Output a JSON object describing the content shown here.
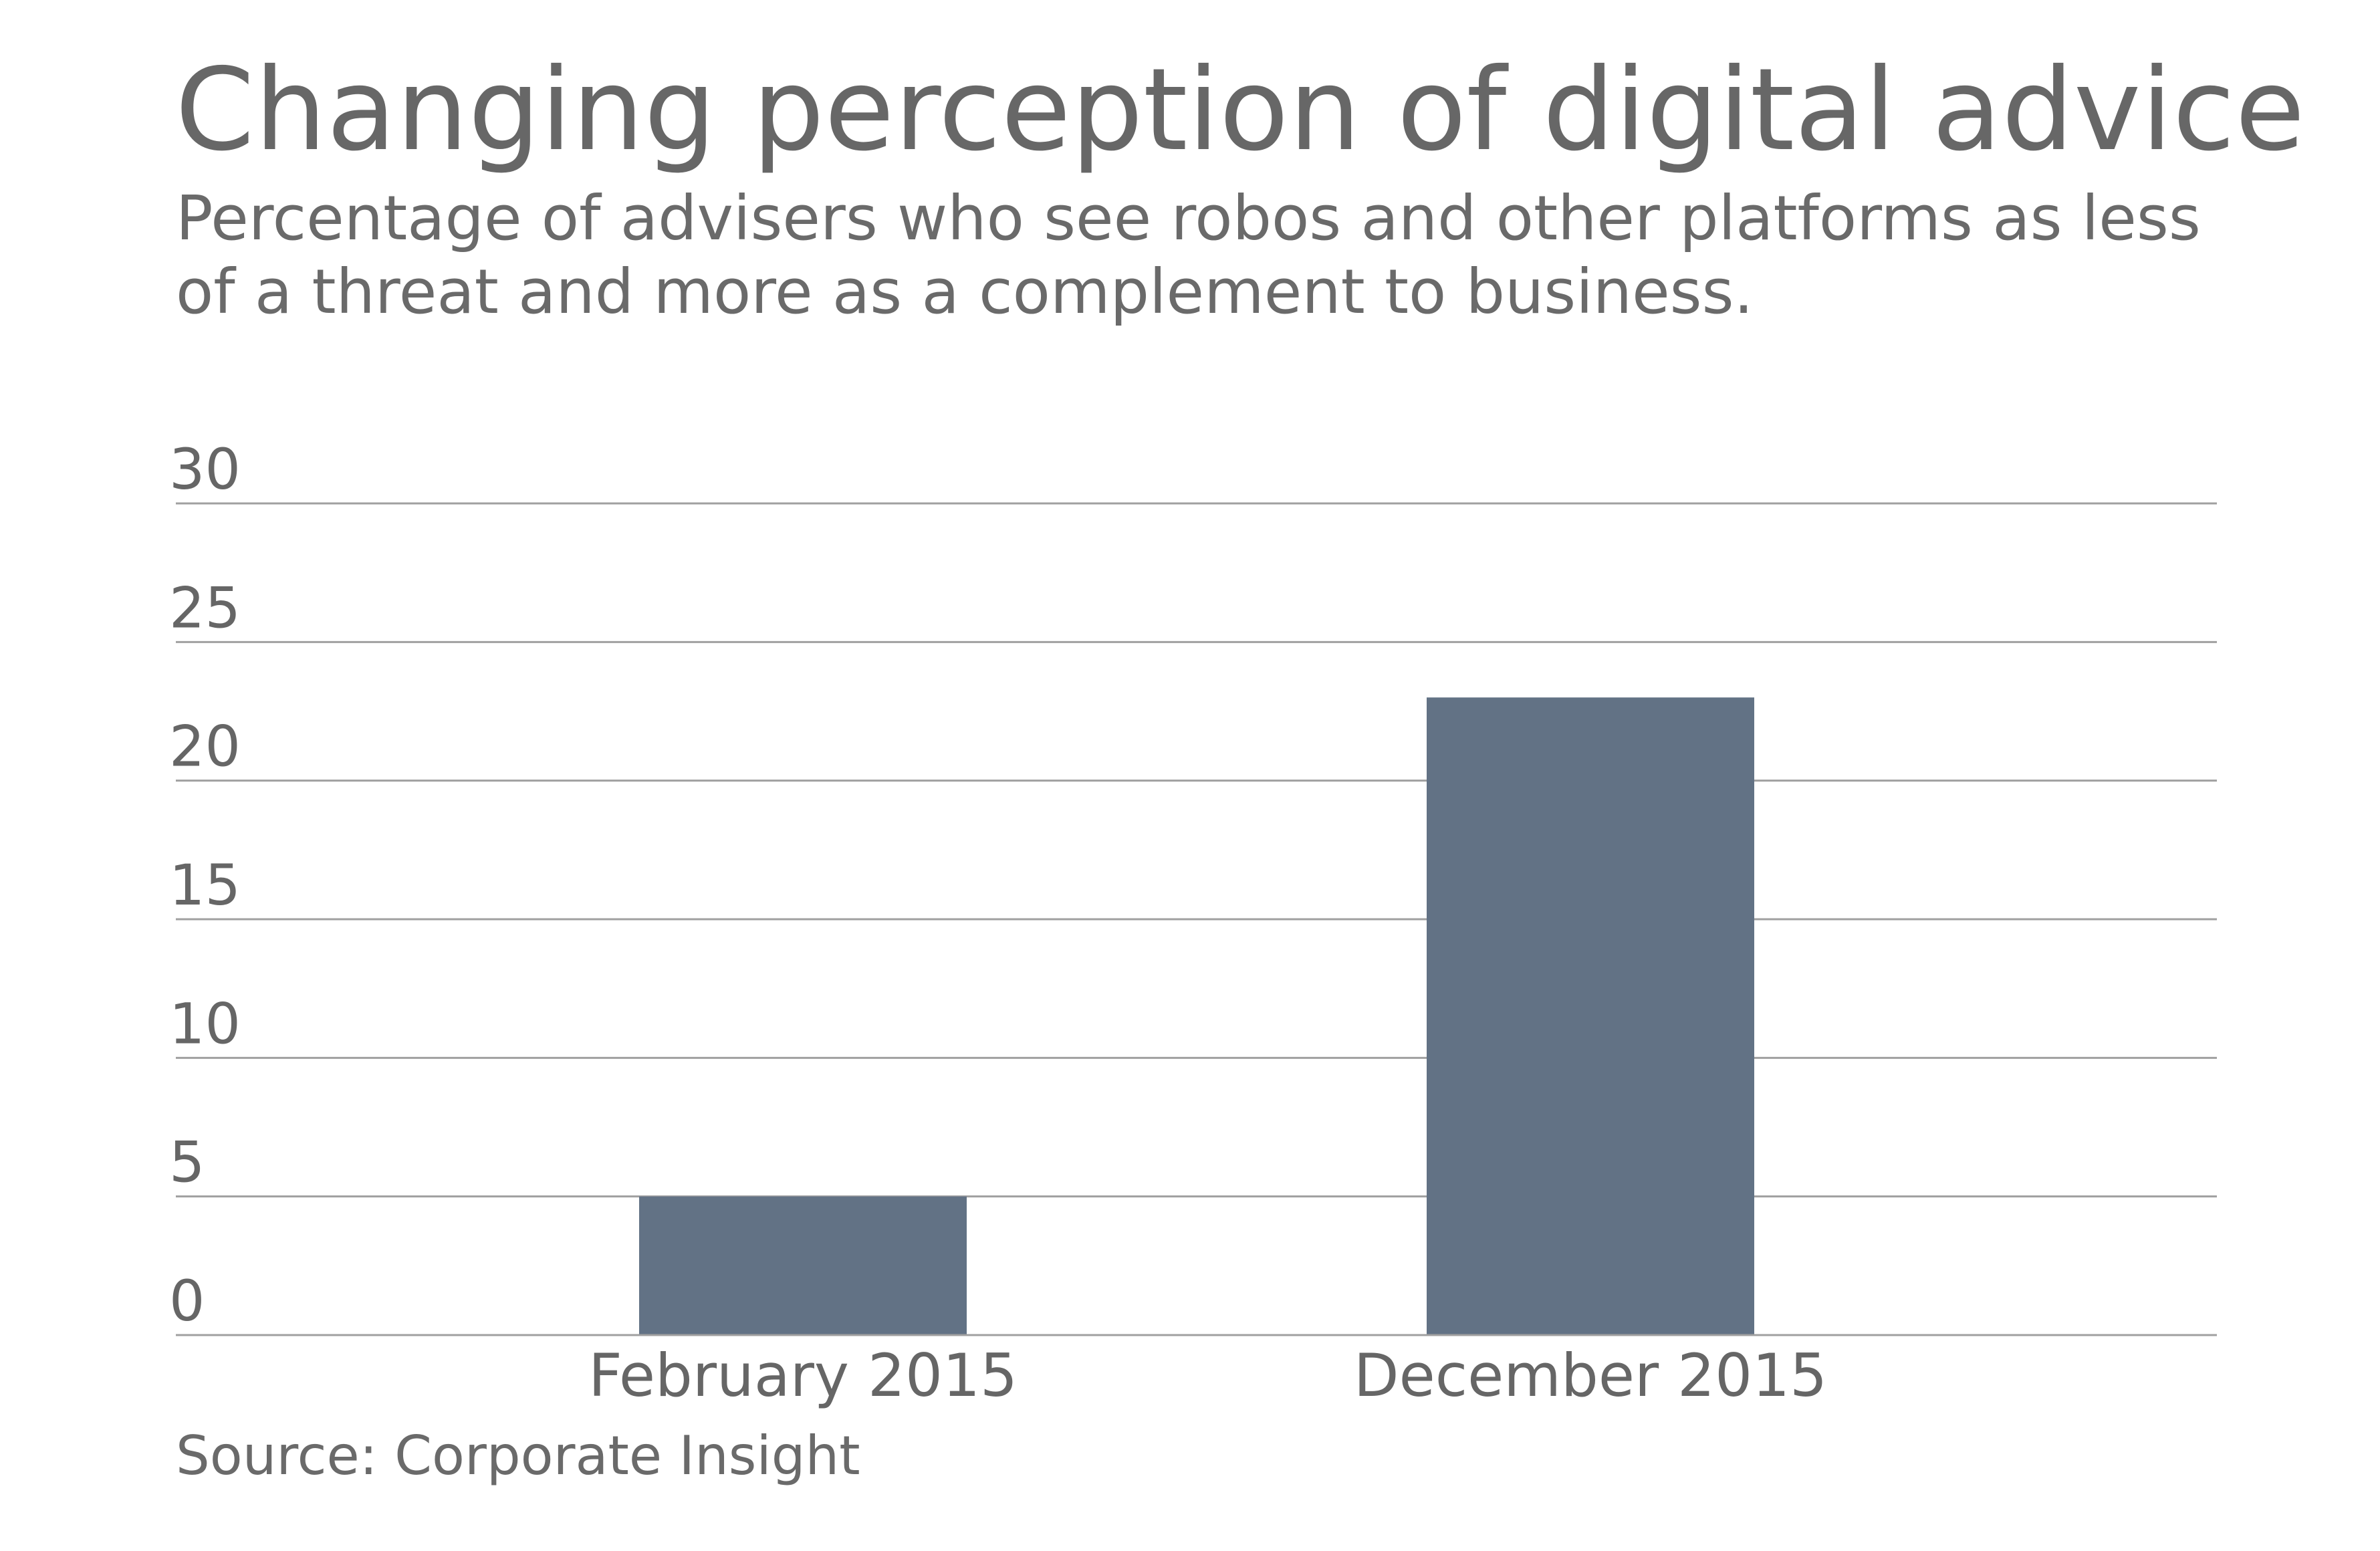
{
  "chart_data": {
    "type": "bar",
    "title": "Changing perception of digital advice",
    "subtitle": "Percentage of advisers who see robos and other platforms as less of a threat and more as a complement to business.",
    "categories": [
      "February 2015",
      "December 2015"
    ],
    "values": [
      5,
      23
    ],
    "xlabel": "",
    "ylabel": "",
    "ylim": [
      0,
      30
    ],
    "yticks": [
      0,
      5,
      10,
      15,
      20,
      25,
      30
    ],
    "grid": true,
    "legend": "none",
    "source": "Source: Corporate Insight",
    "colors": {
      "bar": "#627285",
      "grid": "#a0a0a0",
      "text": "#666666"
    }
  }
}
